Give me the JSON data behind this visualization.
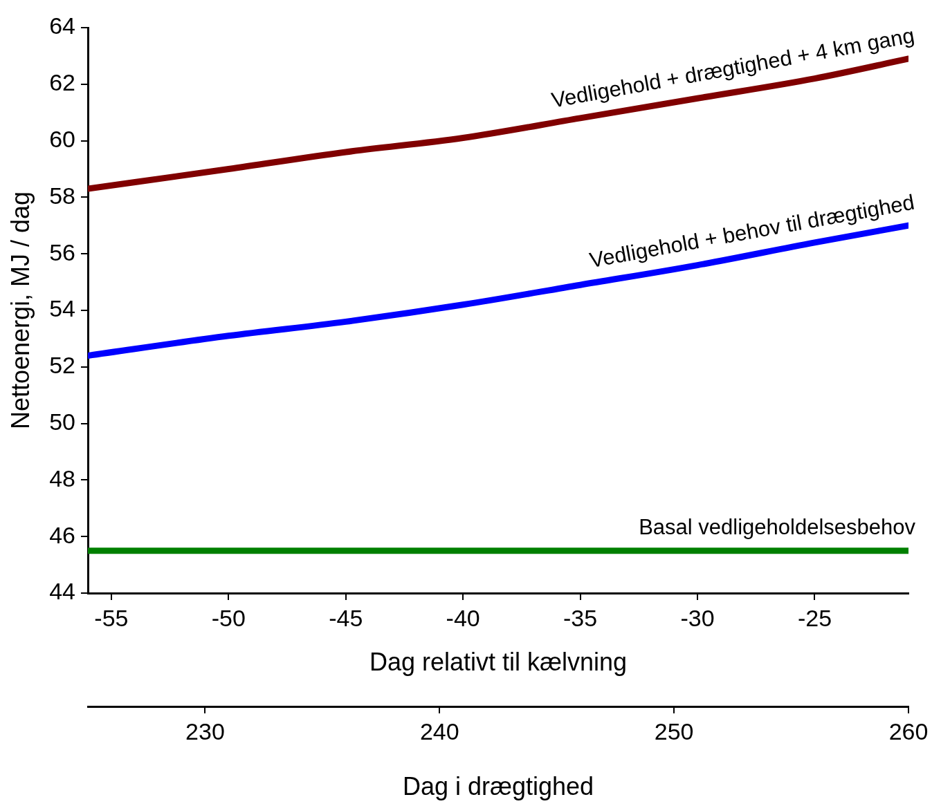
{
  "chart_data": {
    "type": "line",
    "xlabel": "Dag relativt til kælvning",
    "ylabel": "Nettoenergi, MJ / dag",
    "x2label": "Dag i drægtighed",
    "x": [
      -56,
      -50,
      -45,
      -40,
      -35,
      -30,
      -25,
      -21
    ],
    "xlim": [
      -56,
      -21
    ],
    "xticks": [
      -55,
      -50,
      -45,
      -40,
      -35,
      -30,
      -25
    ],
    "x2lim": [
      225,
      260
    ],
    "x2ticks": [
      230,
      240,
      250,
      260
    ],
    "ylim": [
      44,
      64
    ],
    "yticks": [
      44,
      46,
      48,
      50,
      52,
      54,
      56,
      58,
      60,
      62,
      64
    ],
    "series": [
      {
        "name": "Vedligehold + drægtighed + 4 km gang",
        "color": "#800000",
        "values": [
          58.3,
          59.0,
          59.6,
          60.1,
          60.8,
          61.5,
          62.2,
          62.9
        ]
      },
      {
        "name": "Vedligehold + behov til drægtighed",
        "color": "#0000ff",
        "values": [
          52.4,
          53.1,
          53.6,
          54.2,
          54.9,
          55.6,
          56.4,
          57.0
        ]
      },
      {
        "name": "Basal vedligeholdelsesbehov",
        "color": "#008000",
        "values": [
          45.5,
          45.5,
          45.5,
          45.5,
          45.5,
          45.5,
          45.5,
          45.5
        ]
      }
    ],
    "grid": false,
    "legend": false,
    "marker": "none",
    "line_style": "solid"
  }
}
